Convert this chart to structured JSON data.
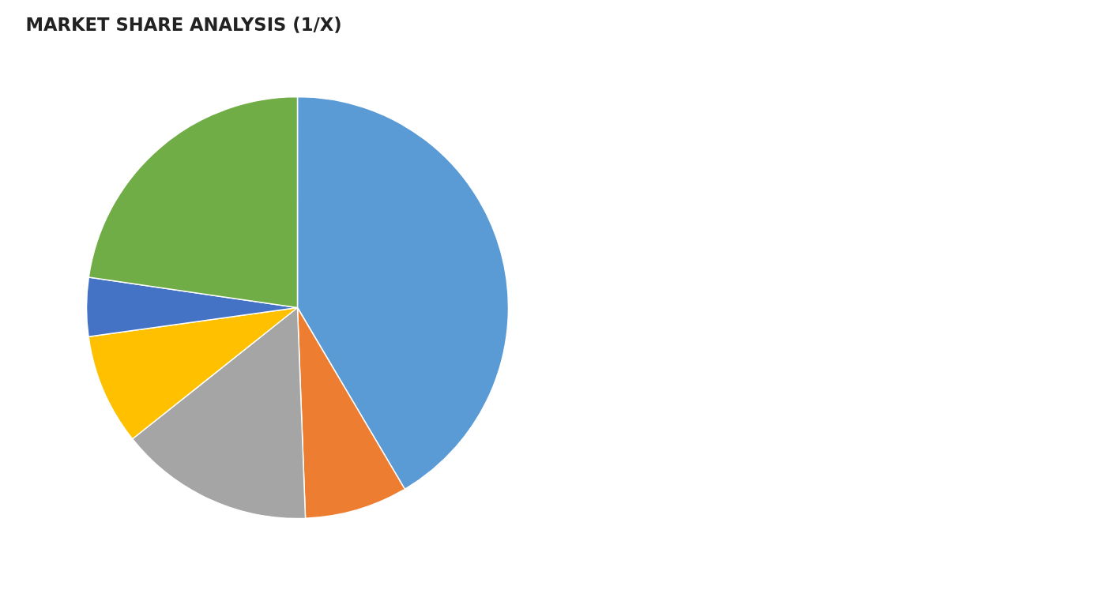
{
  "chart_data": {
    "type": "pie",
    "title": "MARKET SHARE ANALYSIS (1/X)",
    "categories": [
      null,
      null,
      null,
      null,
      null,
      null
    ],
    "values": [
      41.5,
      7.9,
      14.9,
      8.5,
      4.5,
      22.7
    ],
    "colors": [
      "#5b9bd5",
      "#ed7d31",
      "#a5a5a5",
      "#ffc000",
      "#4472c4",
      "#70ad47"
    ]
  }
}
